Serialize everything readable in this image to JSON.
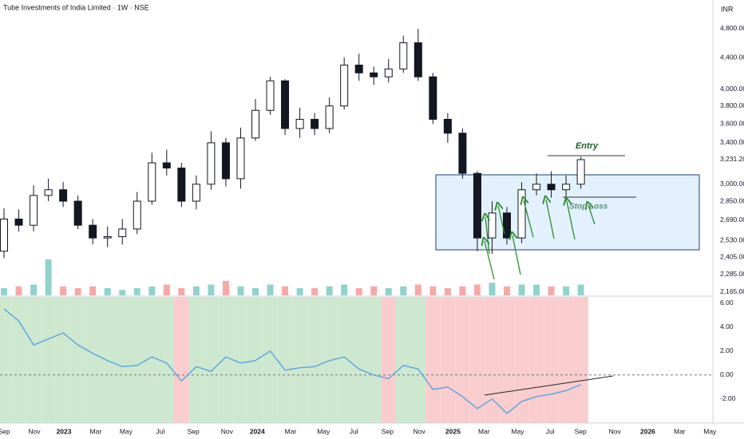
{
  "chart_data": [
    {
      "type": "candlestick",
      "title": "Tube Investments of India Limited · 1W · NSE",
      "y_label": "INR",
      "x": [
        0,
        4,
        8,
        12,
        16,
        20,
        24,
        28,
        32,
        36,
        40,
        44,
        48,
        52,
        56,
        60,
        64,
        68,
        72,
        76,
        80,
        84,
        88,
        92,
        96,
        100,
        104,
        108,
        112,
        116,
        120,
        124,
        128,
        132,
        136,
        140,
        144,
        148,
        152,
        156
      ],
      "open": [
        2450,
        2700,
        2650,
        2900,
        2950,
        2850,
        2650,
        2550,
        2560,
        2620,
        2850,
        3200,
        3150,
        2850,
        3000,
        3400,
        3050,
        3450,
        3750,
        4100,
        3550,
        3650,
        3550,
        3800,
        4300,
        4200,
        4150,
        4250,
        4600,
        4150,
        3650,
        3500,
        3100,
        2550,
        2750,
        2550,
        2950,
        3000,
        2950,
        3000
      ],
      "high": [
        2790,
        2780,
        2990,
        3050,
        3020,
        2900,
        2700,
        2640,
        2700,
        2930,
        3300,
        3330,
        3200,
        3080,
        3520,
        3450,
        3560,
        3880,
        4150,
        4120,
        3780,
        3720,
        3900,
        4400,
        4450,
        4280,
        4380,
        4700,
        4800,
        4200,
        3720,
        3550,
        3120,
        2850,
        2800,
        3020,
        3100,
        3120,
        3080,
        3260
      ],
      "low": [
        2400,
        2600,
        2600,
        2850,
        2800,
        2620,
        2500,
        2480,
        2500,
        2580,
        2820,
        3080,
        2800,
        2780,
        2950,
        2980,
        2960,
        3420,
        3700,
        3480,
        3450,
        3480,
        3500,
        3760,
        4100,
        4050,
        4080,
        4200,
        4100,
        3600,
        3400,
        3050,
        2450,
        2430,
        2500,
        2510,
        2900,
        2880,
        2850,
        2960
      ],
      "close": [
        2700,
        2650,
        2900,
        2950,
        2850,
        2650,
        2550,
        2560,
        2620,
        2850,
        3200,
        3150,
        2850,
        3000,
        3400,
        3050,
        3450,
        3750,
        4100,
        3550,
        3650,
        3550,
        3800,
        4300,
        4200,
        4150,
        4250,
        4600,
        4150,
        3650,
        3500,
        3100,
        2550,
        2750,
        2550,
        2950,
        3000,
        2950,
        3000,
        3231.2
      ],
      "volume": [
        4,
        5,
        6,
        20,
        5,
        4,
        5,
        4,
        3,
        4,
        5,
        6,
        4,
        5,
        6,
        8,
        5,
        4,
        6,
        5,
        4,
        4,
        5,
        6,
        4,
        5,
        4,
        5,
        6,
        5,
        4,
        5,
        6,
        7,
        5,
        6,
        6,
        5,
        5,
        6
      ],
      "up_color": "#ffffff",
      "down_color": "#131722",
      "volume_up_color": "rgba(38,166,154,0.5)",
      "volume_down_color": "rgba(239,83,80,0.5)",
      "log_scale": true,
      "ylim": [
        2144,
        5235
      ],
      "yticks": [
        {
          "value": 4800,
          "label": "4,800.00"
        },
        {
          "value": 4400,
          "label": "4,400.00"
        },
        {
          "value": 4000,
          "label": "4,000.00"
        },
        {
          "value": 3800,
          "label": "3,800.00"
        },
        {
          "value": 3600,
          "label": "3,600.00"
        },
        {
          "value": 3400,
          "label": "3,400.00"
        },
        {
          "value": 3000,
          "label": "3,000.00"
        },
        {
          "value": 2850,
          "label": "2,850.00"
        },
        {
          "value": 2690,
          "label": "2,690.00"
        },
        {
          "value": 2530,
          "label": "2,530.00"
        },
        {
          "value": 2405,
          "label": "2,405.00"
        },
        {
          "value": 2285,
          "label": "2,285.00"
        },
        {
          "value": 2165,
          "label": "2,165.00"
        }
      ],
      "last_price": {
        "value": 3231.2,
        "label": "3,231.20"
      },
      "xlim": [
        -1.08,
        191.7
      ],
      "xticks": [
        {
          "value": 0,
          "label": "Sep"
        },
        {
          "value": 8.2,
          "label": "Nov"
        },
        {
          "value": 16.2,
          "label": "2023"
        },
        {
          "value": 24.8,
          "label": "Mar"
        },
        {
          "value": 33,
          "label": "May"
        },
        {
          "value": 42.3,
          "label": "Jul"
        },
        {
          "value": 51.2,
          "label": "Sep"
        },
        {
          "value": 60.3,
          "label": "Nov"
        },
        {
          "value": 68.5,
          "label": "2024"
        },
        {
          "value": 77.5,
          "label": "Mar"
        },
        {
          "value": 86.4,
          "label": "May"
        },
        {
          "value": 94.6,
          "label": "Jul"
        },
        {
          "value": 103.7,
          "label": "Sep"
        },
        {
          "value": 112.3,
          "label": "Nov"
        },
        {
          "value": 121.4,
          "label": "2025"
        },
        {
          "value": 129.8,
          "label": "Mar"
        },
        {
          "value": 138.9,
          "label": "May"
        },
        {
          "value": 147.7,
          "label": "Jul"
        },
        {
          "value": 155.9,
          "label": "Sep"
        },
        {
          "value": 165.2,
          "label": "Nov"
        },
        {
          "value": 174.1,
          "label": "2026"
        },
        {
          "value": 182.7,
          "label": "Mar"
        },
        {
          "value": 190.9,
          "label": "May"
        }
      ],
      "annotations": [
        "Entry",
        "Stop Loss"
      ]
    },
    {
      "type": "line",
      "x": [
        0,
        4,
        8,
        12,
        16,
        20,
        24,
        28,
        32,
        36,
        40,
        44,
        48,
        52,
        56,
        60,
        64,
        68,
        72,
        76,
        80,
        84,
        88,
        92,
        96,
        100,
        104,
        108,
        112,
        116,
        120,
        124,
        128,
        132,
        136,
        140,
        144,
        148,
        152,
        156
      ],
      "values": [
        5.5,
        4.5,
        2.5,
        3.0,
        3.5,
        2.5,
        1.8,
        1.2,
        0.7,
        0.8,
        1.5,
        1.0,
        -0.5,
        0.7,
        0.3,
        1.5,
        1.0,
        1.2,
        2.0,
        0.4,
        0.6,
        0.7,
        1.2,
        1.5,
        0.5,
        0.0,
        -0.3,
        0.8,
        0.5,
        -1.2,
        -1.0,
        -1.8,
        -2.8,
        -2.0,
        -3.2,
        -2.2,
        -1.8,
        -1.6,
        -1.3,
        -0.8
      ],
      "color": "#5fa8e0",
      "above_zero_color": "#cde8cf",
      "below_zero_color": "#f9cdcd",
      "zero_line": true,
      "ylim": [
        -4,
        6.5
      ],
      "yticks": [
        {
          "value": 6,
          "label": "6.00"
        },
        {
          "value": 4,
          "label": "4.00"
        },
        {
          "value": 2,
          "label": "2.00"
        },
        {
          "value": 0,
          "label": "0.00"
        },
        {
          "value": -2,
          "label": "-2.00"
        }
      ]
    }
  ]
}
